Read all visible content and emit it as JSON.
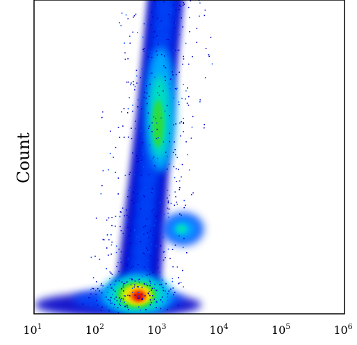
{
  "chart_data": {
    "type": "heatmap",
    "title": "",
    "xlabel": "",
    "ylabel": "Count",
    "x_scale": "log",
    "xlim": [
      10,
      1000000
    ],
    "x_ticks": [
      {
        "value": 10,
        "base": "10",
        "exp": "1"
      },
      {
        "value": 100,
        "base": "10",
        "exp": "2"
      },
      {
        "value": 1000,
        "base": "10",
        "exp": "3"
      },
      {
        "value": 10000,
        "base": "10",
        "exp": "4"
      },
      {
        "value": 100000,
        "base": "10",
        "exp": "5"
      },
      {
        "value": 1000000,
        "base": "10",
        "exp": "6"
      }
    ],
    "y_ticks_shown": false,
    "grid": false,
    "colormap": [
      "#0000c8",
      "#0050ff",
      "#00b4ff",
      "#00e6b4",
      "#32dc32",
      "#c8f000",
      "#ffdc00",
      "#ff6400",
      "#dc0000"
    ],
    "populations": [
      {
        "x_center": 450,
        "y_level": 0.06,
        "density": "highest"
      },
      {
        "x_center": 1100,
        "y_level": 0.65,
        "density": "high"
      },
      {
        "x_center": 2500,
        "y_level": 0.27,
        "density": "medium"
      }
    ]
  }
}
